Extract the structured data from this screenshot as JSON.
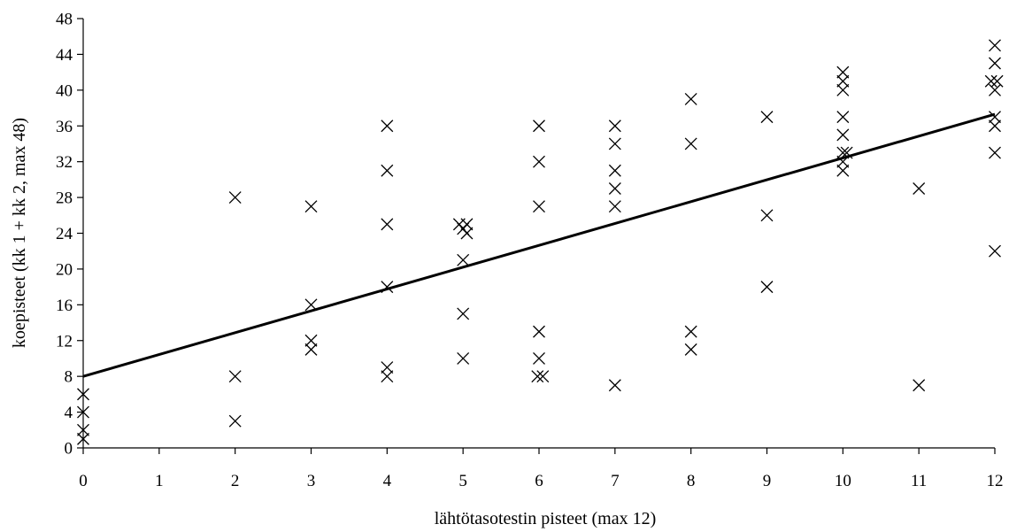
{
  "chart_data": {
    "type": "scatter",
    "title": "",
    "xlabel": "lähtötasotestin pisteet (max 12)",
    "ylabel": "koepisteet (kk 1 + kk 2, max 48)",
    "xlim": [
      0,
      12
    ],
    "ylim": [
      0,
      48
    ],
    "xticks": [
      "0",
      "1",
      "2",
      "3",
      "4",
      "5",
      "6",
      "7",
      "8",
      "9",
      "10",
      "11",
      "12"
    ],
    "yticks": [
      "0",
      "4",
      "8",
      "12",
      "16",
      "20",
      "24",
      "28",
      "32",
      "36",
      "40",
      "44",
      "48"
    ],
    "grid": false,
    "marker": "x",
    "points": [
      [
        0,
        6
      ],
      [
        0,
        4
      ],
      [
        0,
        2
      ],
      [
        0,
        1
      ],
      [
        2,
        28
      ],
      [
        2,
        8
      ],
      [
        2,
        3
      ],
      [
        3,
        27
      ],
      [
        3,
        16
      ],
      [
        3,
        12
      ],
      [
        3,
        11
      ],
      [
        4,
        36
      ],
      [
        4,
        31
      ],
      [
        4,
        25
      ],
      [
        4,
        18
      ],
      [
        4,
        9
      ],
      [
        4,
        8
      ],
      [
        4.95,
        25
      ],
      [
        5.05,
        25
      ],
      [
        5,
        24.5
      ],
      [
        5.05,
        24
      ],
      [
        5,
        21
      ],
      [
        5,
        15
      ],
      [
        5,
        10
      ],
      [
        6,
        36
      ],
      [
        6,
        32
      ],
      [
        6,
        27
      ],
      [
        6,
        13
      ],
      [
        6,
        10
      ],
      [
        5.98,
        8
      ],
      [
        6.05,
        8
      ],
      [
        7,
        36
      ],
      [
        7,
        34
      ],
      [
        7,
        31
      ],
      [
        7,
        29
      ],
      [
        7,
        27
      ],
      [
        7,
        7
      ],
      [
        8,
        39
      ],
      [
        8,
        34
      ],
      [
        8,
        13
      ],
      [
        8,
        11
      ],
      [
        9,
        37
      ],
      [
        9,
        26
      ],
      [
        9,
        18
      ],
      [
        10,
        42
      ],
      [
        10,
        41
      ],
      [
        10,
        40
      ],
      [
        10,
        37
      ],
      [
        10,
        35
      ],
      [
        10,
        33
      ],
      [
        10.05,
        33
      ],
      [
        10,
        32
      ],
      [
        10,
        31
      ],
      [
        11,
        29
      ],
      [
        11,
        7
      ],
      [
        12,
        45
      ],
      [
        12,
        43
      ],
      [
        11.95,
        41
      ],
      [
        12.03,
        41
      ],
      [
        12,
        40
      ],
      [
        12,
        37
      ],
      [
        12,
        36
      ],
      [
        12,
        33
      ],
      [
        12,
        22
      ]
    ],
    "trendline": {
      "type": "linear",
      "x": [
        0,
        12
      ],
      "y": [
        8,
        37.3
      ]
    }
  }
}
